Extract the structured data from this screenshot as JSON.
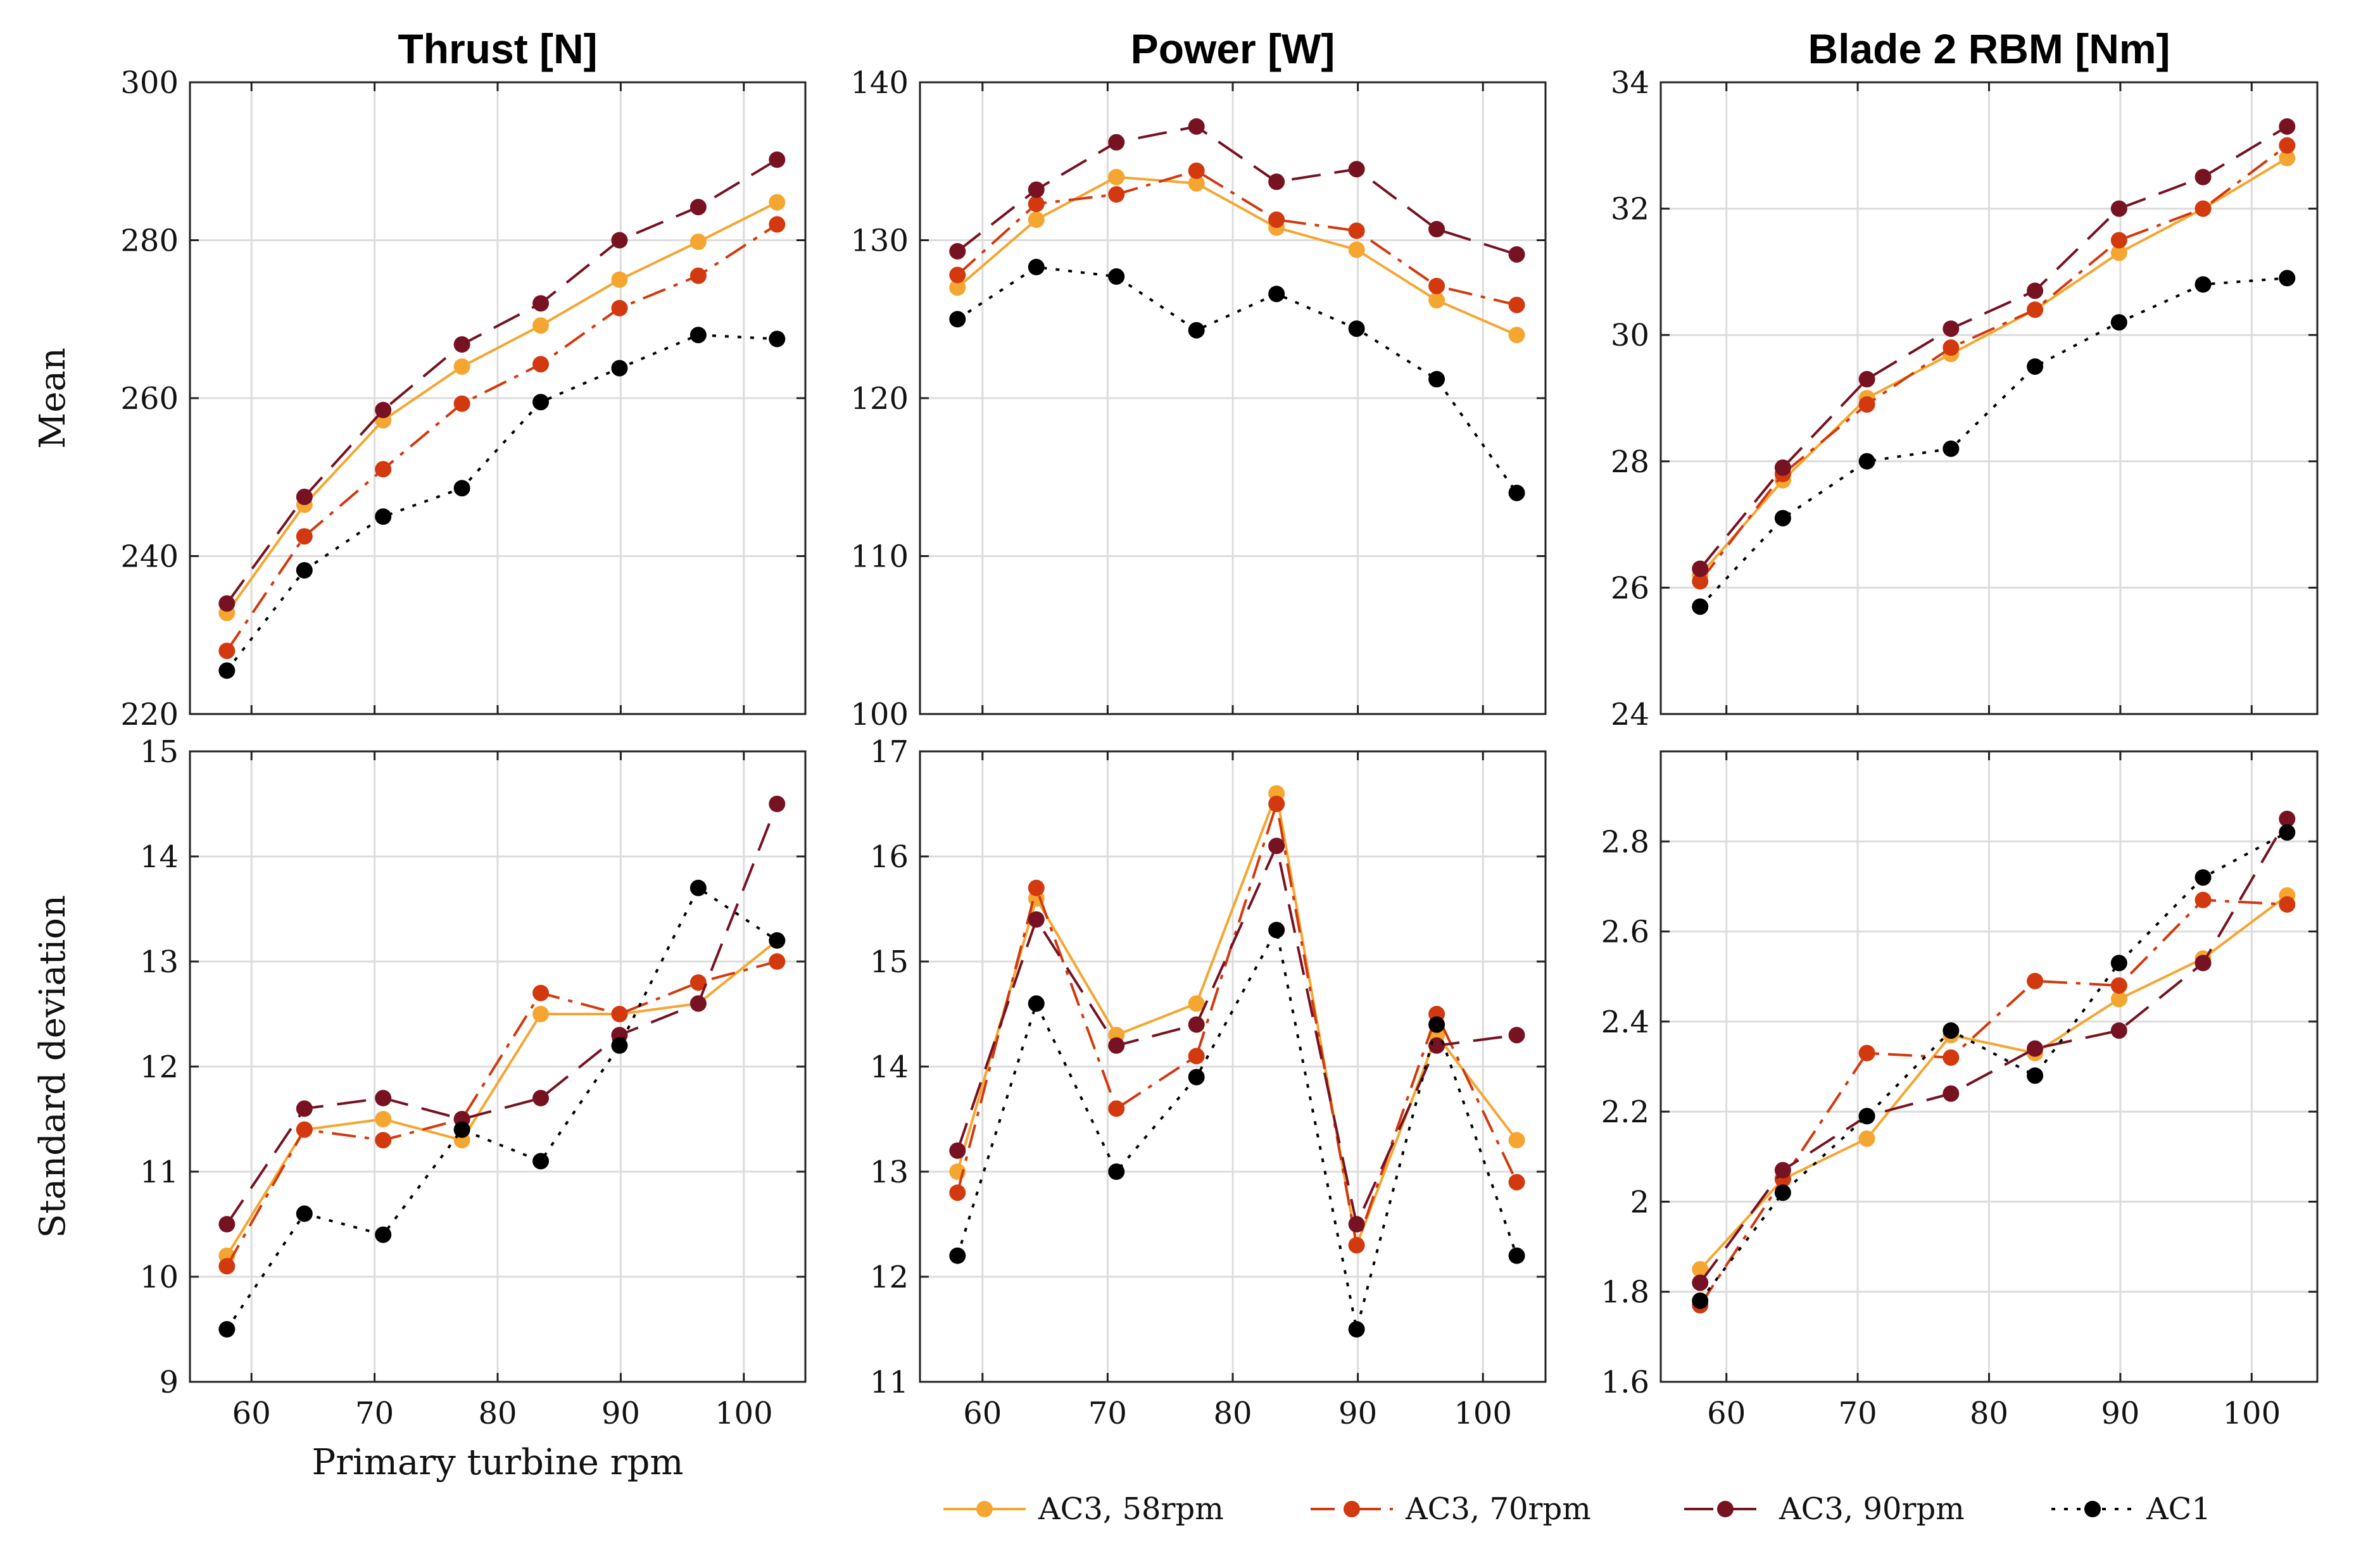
{
  "legend": [
    {
      "name": "AC3, 58rpm",
      "color": "#f5a631",
      "dash": "solid"
    },
    {
      "name": "AC3, 70rpm",
      "color": "#d2390f",
      "dash": "dashdot"
    },
    {
      "name": "AC3, 90rpm",
      "color": "#761222",
      "dash": "dashed"
    },
    {
      "name": "AC1",
      "color": "#000000",
      "dash": "dotted"
    }
  ],
  "chart_data": [
    {
      "type": "line",
      "id": "thrust-mean",
      "title": "Thrust [N]",
      "ylabel": "Mean",
      "xlabel": "",
      "ylim": [
        220,
        300
      ],
      "yticks": [
        "220",
        "240",
        "260",
        "280",
        "300"
      ],
      "xlim": [
        55,
        105
      ],
      "xticks": [
        "60",
        "70",
        "80",
        "90",
        "100"
      ],
      "x": [
        58,
        64.3,
        70.7,
        77.1,
        83.5,
        89.9,
        96.3,
        102.7
      ],
      "series": [
        {
          "name": "AC3, 58rpm",
          "values": [
            232.8,
            246.5,
            257.2,
            264.0,
            269.2,
            275.0,
            279.8,
            284.8
          ]
        },
        {
          "name": "AC3, 70rpm",
          "values": [
            228.0,
            242.5,
            251.0,
            259.3,
            264.3,
            271.4,
            275.5,
            282.0
          ]
        },
        {
          "name": "AC3, 90rpm",
          "values": [
            234.0,
            247.5,
            258.5,
            266.8,
            272.0,
            280.0,
            284.2,
            290.2
          ]
        },
        {
          "name": "AC1",
          "values": [
            225.5,
            238.2,
            245.0,
            248.6,
            259.5,
            263.8,
            268.0,
            267.5
          ]
        }
      ]
    },
    {
      "type": "line",
      "id": "power-mean",
      "title": "Power [W]",
      "ylabel": "",
      "xlabel": "",
      "ylim": [
        100,
        140
      ],
      "yticks": [
        "100",
        "110",
        "120",
        "130",
        "140"
      ],
      "xlim": [
        55,
        105
      ],
      "xticks": [
        "60",
        "70",
        "80",
        "90",
        "100"
      ],
      "x": [
        58,
        64.3,
        70.7,
        77.1,
        83.5,
        89.9,
        96.3,
        102.7
      ],
      "series": [
        {
          "name": "AC3, 58rpm",
          "values": [
            127.0,
            131.3,
            134.0,
            133.6,
            130.8,
            129.4,
            126.2,
            124.0
          ]
        },
        {
          "name": "AC3, 70rpm",
          "values": [
            127.8,
            132.3,
            132.9,
            134.4,
            131.3,
            130.6,
            127.1,
            125.9
          ]
        },
        {
          "name": "AC3, 90rpm",
          "values": [
            129.3,
            133.2,
            136.2,
            137.2,
            133.7,
            134.5,
            130.7,
            129.1
          ]
        },
        {
          "name": "AC1",
          "values": [
            125.0,
            128.3,
            127.7,
            124.3,
            126.6,
            124.4,
            121.2,
            114.0
          ]
        }
      ]
    },
    {
      "type": "line",
      "id": "rbm-mean",
      "title": "Blade 2 RBM [Nm]",
      "ylabel": "",
      "xlabel": "",
      "ylim": [
        24,
        34
      ],
      "yticks": [
        "24",
        "26",
        "28",
        "30",
        "32",
        "34"
      ],
      "xlim": [
        55,
        105
      ],
      "xticks": [
        "60",
        "70",
        "80",
        "90",
        "100"
      ],
      "x": [
        58,
        64.3,
        70.7,
        77.1,
        83.5,
        89.9,
        96.3,
        102.7
      ],
      "series": [
        {
          "name": "AC3, 58rpm",
          "values": [
            26.2,
            27.7,
            29.0,
            29.7,
            30.4,
            31.3,
            32.0,
            32.8
          ]
        },
        {
          "name": "AC3, 70rpm",
          "values": [
            26.1,
            27.8,
            28.9,
            29.8,
            30.4,
            31.5,
            32.0,
            33.0
          ]
        },
        {
          "name": "AC3, 90rpm",
          "values": [
            26.3,
            27.9,
            29.3,
            30.1,
            30.7,
            32.0,
            32.5,
            33.3
          ]
        },
        {
          "name": "AC1",
          "values": [
            25.7,
            27.1,
            28.0,
            28.2,
            29.5,
            30.2,
            30.8,
            30.9
          ]
        }
      ]
    },
    {
      "type": "line",
      "id": "thrust-std",
      "title": "",
      "ylabel": "Standard deviation",
      "xlabel": "Primary turbine rpm",
      "ylim": [
        9,
        15
      ],
      "yticks": [
        "9",
        "10",
        "11",
        "12",
        "13",
        "14",
        "15"
      ],
      "xlim": [
        55,
        105
      ],
      "xticks": [
        "60",
        "70",
        "80",
        "90",
        "100"
      ],
      "x": [
        58,
        64.3,
        70.7,
        77.1,
        83.5,
        89.9,
        96.3,
        102.7
      ],
      "series": [
        {
          "name": "AC3, 58rpm",
          "values": [
            10.2,
            11.4,
            11.5,
            11.3,
            12.5,
            12.5,
            12.6,
            13.2
          ]
        },
        {
          "name": "AC3, 70rpm",
          "values": [
            10.1,
            11.4,
            11.3,
            11.5,
            12.7,
            12.5,
            12.8,
            13.0
          ]
        },
        {
          "name": "AC3, 90rpm",
          "values": [
            10.5,
            11.6,
            11.7,
            11.5,
            11.7,
            12.3,
            12.6,
            14.5
          ]
        },
        {
          "name": "AC1",
          "values": [
            9.5,
            10.6,
            10.4,
            11.4,
            11.1,
            12.2,
            13.7,
            13.2
          ]
        }
      ]
    },
    {
      "type": "line",
      "id": "power-std",
      "title": "",
      "ylabel": "",
      "xlabel": "",
      "ylim": [
        11,
        17
      ],
      "yticks": [
        "11",
        "12",
        "13",
        "14",
        "15",
        "16",
        "17"
      ],
      "xlim": [
        55,
        105
      ],
      "xticks": [
        "60",
        "70",
        "80",
        "90",
        "100"
      ],
      "x": [
        58,
        64.3,
        70.7,
        77.1,
        83.5,
        89.9,
        96.3,
        102.7
      ],
      "series": [
        {
          "name": "AC3, 58rpm",
          "values": [
            13.0,
            15.6,
            14.3,
            14.6,
            16.6,
            12.3,
            14.3,
            13.3
          ]
        },
        {
          "name": "AC3, 70rpm",
          "values": [
            12.8,
            15.7,
            13.6,
            14.1,
            16.5,
            12.3,
            14.5,
            12.9
          ]
        },
        {
          "name": "AC3, 90rpm",
          "values": [
            13.2,
            15.4,
            14.2,
            14.4,
            16.1,
            12.5,
            14.2,
            14.3
          ]
        },
        {
          "name": "AC1",
          "values": [
            12.2,
            14.6,
            13.0,
            13.9,
            15.3,
            11.5,
            14.4,
            12.2
          ]
        }
      ]
    },
    {
      "type": "line",
      "id": "rbm-std",
      "title": "",
      "ylabel": "",
      "xlabel": "",
      "ylim": [
        1.6,
        3.0
      ],
      "yticks": [
        "1.6",
        "1.8",
        "2",
        "2.2",
        "2.4",
        "2.6",
        "2.8"
      ],
      "xlim": [
        55,
        105
      ],
      "xticks": [
        "60",
        "70",
        "80",
        "90",
        "100"
      ],
      "x": [
        58,
        64.3,
        70.7,
        77.1,
        83.5,
        89.9,
        96.3,
        102.7
      ],
      "series": [
        {
          "name": "AC3, 58rpm",
          "values": [
            1.85,
            2.05,
            2.14,
            2.37,
            2.33,
            2.45,
            2.54,
            2.68
          ]
        },
        {
          "name": "AC3, 70rpm",
          "values": [
            1.77,
            2.05,
            2.33,
            2.32,
            2.49,
            2.48,
            2.67,
            2.66
          ]
        },
        {
          "name": "AC3, 90rpm",
          "values": [
            1.82,
            2.07,
            2.19,
            2.24,
            2.34,
            2.38,
            2.53,
            2.85
          ]
        },
        {
          "name": "AC1",
          "values": [
            1.78,
            2.02,
            2.19,
            2.38,
            2.28,
            2.53,
            2.72,
            2.82
          ]
        }
      ]
    }
  ]
}
